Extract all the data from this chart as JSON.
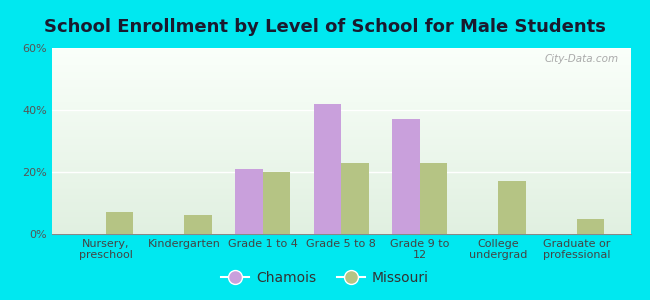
{
  "title": "School Enrollment by Level of School for Male Students",
  "categories": [
    "Nursery,\npreschool",
    "Kindergarten",
    "Grade 1 to 4",
    "Grade 5 to 8",
    "Grade 9 to\n12",
    "College\nundergrad",
    "Graduate or\nprofessional"
  ],
  "chamois_values": [
    0,
    0,
    21,
    42,
    37,
    0,
    0
  ],
  "missouri_values": [
    7,
    6,
    20,
    23,
    23,
    17,
    5
  ],
  "chamois_color": "#c9a0dc",
  "missouri_color": "#b5c484",
  "background_outer": "#00e8f0",
  "ylim": [
    0,
    60
  ],
  "yticks": [
    0,
    20,
    40,
    60
  ],
  "ytick_labels": [
    "0%",
    "20%",
    "40%",
    "60%"
  ],
  "bar_width": 0.35,
  "title_fontsize": 13,
  "tick_fontsize": 8,
  "legend_fontsize": 10,
  "watermark": "City-Data.com"
}
